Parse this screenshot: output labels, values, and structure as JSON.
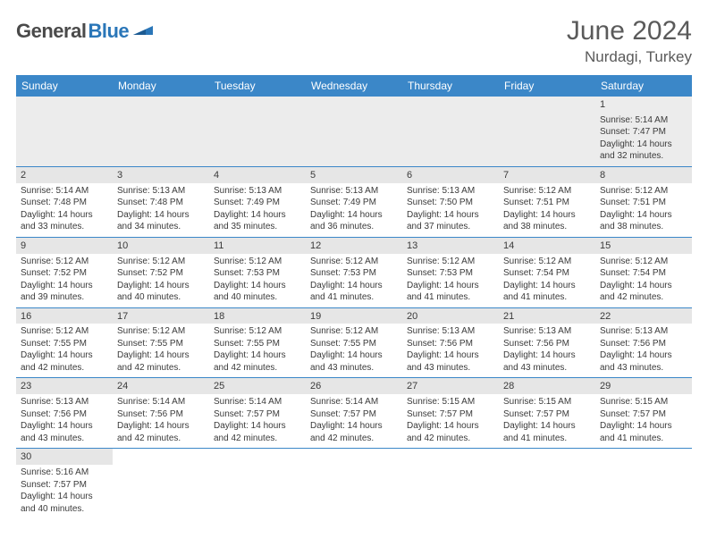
{
  "logo": {
    "text_dark": "General",
    "text_blue": "Blue"
  },
  "title": "June 2024",
  "location": "Nurdagi, Turkey",
  "colors": {
    "header_bg": "#3b87c8",
    "header_text": "#ffffff",
    "cell_border": "#3b87c8",
    "daynum_bg": "#e6e6e6",
    "firstrow_bg": "#ececec",
    "logo_dark": "#4a4a4a",
    "logo_blue": "#2a76b8",
    "title_color": "#5a5a5a"
  },
  "weekdays": [
    "Sunday",
    "Monday",
    "Tuesday",
    "Wednesday",
    "Thursday",
    "Friday",
    "Saturday"
  ],
  "weeks": [
    [
      null,
      null,
      null,
      null,
      null,
      null,
      {
        "n": "1",
        "sr": "5:14 AM",
        "ss": "7:47 PM",
        "dl": "14 hours and 32 minutes."
      }
    ],
    [
      {
        "n": "2",
        "sr": "5:14 AM",
        "ss": "7:48 PM",
        "dl": "14 hours and 33 minutes."
      },
      {
        "n": "3",
        "sr": "5:13 AM",
        "ss": "7:48 PM",
        "dl": "14 hours and 34 minutes."
      },
      {
        "n": "4",
        "sr": "5:13 AM",
        "ss": "7:49 PM",
        "dl": "14 hours and 35 minutes."
      },
      {
        "n": "5",
        "sr": "5:13 AM",
        "ss": "7:49 PM",
        "dl": "14 hours and 36 minutes."
      },
      {
        "n": "6",
        "sr": "5:13 AM",
        "ss": "7:50 PM",
        "dl": "14 hours and 37 minutes."
      },
      {
        "n": "7",
        "sr": "5:12 AM",
        "ss": "7:51 PM",
        "dl": "14 hours and 38 minutes."
      },
      {
        "n": "8",
        "sr": "5:12 AM",
        "ss": "7:51 PM",
        "dl": "14 hours and 38 minutes."
      }
    ],
    [
      {
        "n": "9",
        "sr": "5:12 AM",
        "ss": "7:52 PM",
        "dl": "14 hours and 39 minutes."
      },
      {
        "n": "10",
        "sr": "5:12 AM",
        "ss": "7:52 PM",
        "dl": "14 hours and 40 minutes."
      },
      {
        "n": "11",
        "sr": "5:12 AM",
        "ss": "7:53 PM",
        "dl": "14 hours and 40 minutes."
      },
      {
        "n": "12",
        "sr": "5:12 AM",
        "ss": "7:53 PM",
        "dl": "14 hours and 41 minutes."
      },
      {
        "n": "13",
        "sr": "5:12 AM",
        "ss": "7:53 PM",
        "dl": "14 hours and 41 minutes."
      },
      {
        "n": "14",
        "sr": "5:12 AM",
        "ss": "7:54 PM",
        "dl": "14 hours and 41 minutes."
      },
      {
        "n": "15",
        "sr": "5:12 AM",
        "ss": "7:54 PM",
        "dl": "14 hours and 42 minutes."
      }
    ],
    [
      {
        "n": "16",
        "sr": "5:12 AM",
        "ss": "7:55 PM",
        "dl": "14 hours and 42 minutes."
      },
      {
        "n": "17",
        "sr": "5:12 AM",
        "ss": "7:55 PM",
        "dl": "14 hours and 42 minutes."
      },
      {
        "n": "18",
        "sr": "5:12 AM",
        "ss": "7:55 PM",
        "dl": "14 hours and 42 minutes."
      },
      {
        "n": "19",
        "sr": "5:12 AM",
        "ss": "7:55 PM",
        "dl": "14 hours and 43 minutes."
      },
      {
        "n": "20",
        "sr": "5:13 AM",
        "ss": "7:56 PM",
        "dl": "14 hours and 43 minutes."
      },
      {
        "n": "21",
        "sr": "5:13 AM",
        "ss": "7:56 PM",
        "dl": "14 hours and 43 minutes."
      },
      {
        "n": "22",
        "sr": "5:13 AM",
        "ss": "7:56 PM",
        "dl": "14 hours and 43 minutes."
      }
    ],
    [
      {
        "n": "23",
        "sr": "5:13 AM",
        "ss": "7:56 PM",
        "dl": "14 hours and 43 minutes."
      },
      {
        "n": "24",
        "sr": "5:14 AM",
        "ss": "7:56 PM",
        "dl": "14 hours and 42 minutes."
      },
      {
        "n": "25",
        "sr": "5:14 AM",
        "ss": "7:57 PM",
        "dl": "14 hours and 42 minutes."
      },
      {
        "n": "26",
        "sr": "5:14 AM",
        "ss": "7:57 PM",
        "dl": "14 hours and 42 minutes."
      },
      {
        "n": "27",
        "sr": "5:15 AM",
        "ss": "7:57 PM",
        "dl": "14 hours and 42 minutes."
      },
      {
        "n": "28",
        "sr": "5:15 AM",
        "ss": "7:57 PM",
        "dl": "14 hours and 41 minutes."
      },
      {
        "n": "29",
        "sr": "5:15 AM",
        "ss": "7:57 PM",
        "dl": "14 hours and 41 minutes."
      }
    ],
    [
      {
        "n": "30",
        "sr": "5:16 AM",
        "ss": "7:57 PM",
        "dl": "14 hours and 40 minutes."
      },
      null,
      null,
      null,
      null,
      null,
      null
    ]
  ],
  "labels": {
    "sunrise": "Sunrise:",
    "sunset": "Sunset:",
    "daylight": "Daylight:"
  }
}
